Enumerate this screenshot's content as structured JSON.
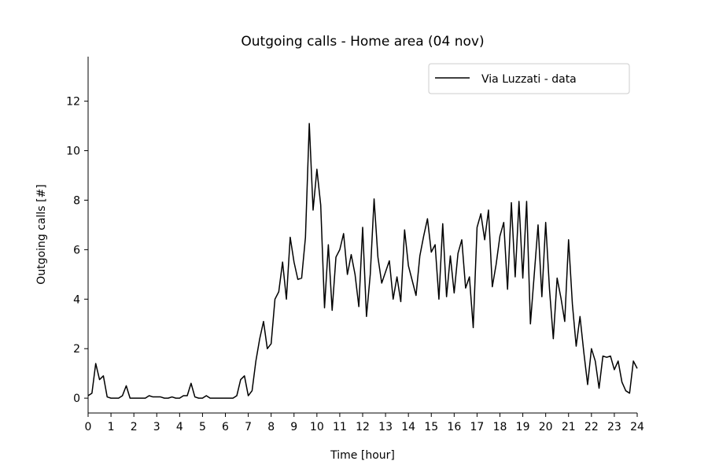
{
  "chart_data": {
    "type": "line",
    "title": "Outgoing calls - Home area (04 nov)",
    "xlabel": "Time [hour]",
    "ylabel": "Outgoing calls [#]",
    "xlim": [
      0,
      24
    ],
    "ylim": [
      -0.6,
      13.8
    ],
    "xticks": [
      0,
      1,
      2,
      3,
      4,
      5,
      6,
      7,
      8,
      9,
      10,
      11,
      12,
      13,
      14,
      15,
      16,
      17,
      18,
      19,
      20,
      21,
      22,
      23,
      24
    ],
    "yticks": [
      0,
      2,
      4,
      6,
      8,
      10,
      12
    ],
    "grid": false,
    "legend_position": "top-right",
    "series": [
      {
        "name": "Via Luzzati - data",
        "color": "#000000",
        "x": [
          0.0,
          0.167,
          0.333,
          0.5,
          0.667,
          0.833,
          1.0,
          1.167,
          1.333,
          1.5,
          1.667,
          1.833,
          2.0,
          2.167,
          2.333,
          2.5,
          2.667,
          2.833,
          3.0,
          3.167,
          3.333,
          3.5,
          3.667,
          3.833,
          4.0,
          4.167,
          4.333,
          4.5,
          4.667,
          4.833,
          5.0,
          5.167,
          5.333,
          5.5,
          5.667,
          5.833,
          6.0,
          6.167,
          6.333,
          6.5,
          6.667,
          6.833,
          7.0,
          7.167,
          7.333,
          7.5,
          7.667,
          7.833,
          8.0,
          8.167,
          8.333,
          8.5,
          8.667,
          8.833,
          9.0,
          9.167,
          9.333,
          9.5,
          9.667,
          9.833,
          10.0,
          10.167,
          10.333,
          10.5,
          10.667,
          10.833,
          11.0,
          11.167,
          11.333,
          11.5,
          11.667,
          11.833,
          12.0,
          12.167,
          12.333,
          12.5,
          12.667,
          12.833,
          13.0,
          13.167,
          13.333,
          13.5,
          13.667,
          13.833,
          14.0,
          14.167,
          14.333,
          14.5,
          14.667,
          14.833,
          15.0,
          15.167,
          15.333,
          15.5,
          15.667,
          15.833,
          16.0,
          16.167,
          16.333,
          16.5,
          16.667,
          16.833,
          17.0,
          17.167,
          17.333,
          17.5,
          17.667,
          17.833,
          18.0,
          18.167,
          18.333,
          18.5,
          18.667,
          18.833,
          19.0,
          19.167,
          19.333,
          19.5,
          19.667,
          19.833,
          20.0,
          20.167,
          20.333,
          20.5,
          20.667,
          20.833,
          21.0,
          21.167,
          21.333,
          21.5,
          21.667,
          21.833,
          22.0,
          22.167,
          22.333,
          22.5,
          22.667,
          22.833,
          23.0,
          23.167,
          23.333,
          23.5,
          23.667,
          23.833,
          24.0
        ],
        "y": [
          0.1,
          0.2,
          1.4,
          0.75,
          0.9,
          0.05,
          0.0,
          0.0,
          0.0,
          0.1,
          0.5,
          0.0,
          0.0,
          0.0,
          0.0,
          0.0,
          0.1,
          0.05,
          0.05,
          0.05,
          0.0,
          0.0,
          0.05,
          0.0,
          0.0,
          0.1,
          0.1,
          0.6,
          0.05,
          0.0,
          0.0,
          0.1,
          0.0,
          0.0,
          0.0,
          0.0,
          0.0,
          0.0,
          0.0,
          0.1,
          0.75,
          0.9,
          0.1,
          0.3,
          1.5,
          2.4,
          3.1,
          2.0,
          2.2,
          4.0,
          4.3,
          5.5,
          4.0,
          6.5,
          5.5,
          4.8,
          4.85,
          6.5,
          11.1,
          7.6,
          9.25,
          7.8,
          3.65,
          6.2,
          3.55,
          5.7,
          6.0,
          6.65,
          5.0,
          5.8,
          5.0,
          3.7,
          6.9,
          3.3,
          5.0,
          8.05,
          5.7,
          4.65,
          5.1,
          5.55,
          4.0,
          4.9,
          3.9,
          6.8,
          5.35,
          4.75,
          4.15,
          5.75,
          6.55,
          7.25,
          5.9,
          6.2,
          4.0,
          7.05,
          4.1,
          5.75,
          4.25,
          5.85,
          6.4,
          4.45,
          4.9,
          2.85,
          6.9,
          7.45,
          6.4,
          7.6,
          4.5,
          5.4,
          6.55,
          7.1,
          4.4,
          7.9,
          4.9,
          7.95,
          4.85,
          7.95,
          3.0,
          5.0,
          7.0,
          4.1,
          7.1,
          4.4,
          2.4,
          4.85,
          4.05,
          3.1,
          6.4,
          3.8,
          2.1,
          3.3,
          1.85,
          0.55,
          2.0,
          1.5,
          0.4,
          1.7,
          1.65,
          1.7,
          1.15,
          1.5,
          0.65,
          0.3,
          0.2,
          1.5,
          1.2
        ]
      }
    ]
  }
}
